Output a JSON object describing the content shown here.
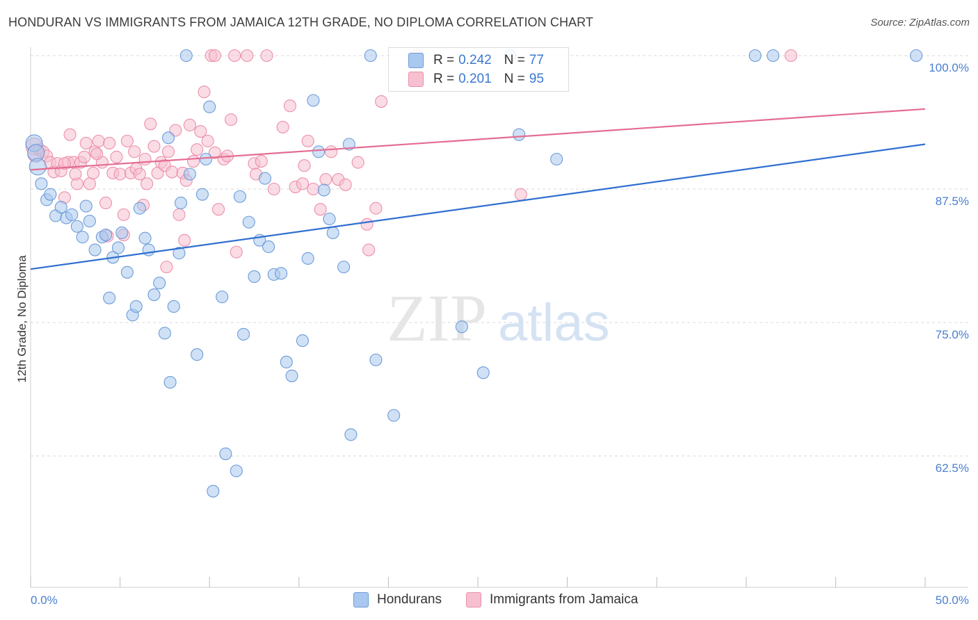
{
  "title": "HONDURAN VS IMMIGRANTS FROM JAMAICA 12TH GRADE, NO DIPLOMA CORRELATION CHART",
  "source": "Source: ZipAtlas.com",
  "watermark": {
    "zip": "ZIP",
    "atlas": "atlas"
  },
  "colors": {
    "blue_fill": "#a9c8ef",
    "blue_stroke": "#6c9bd8",
    "blue_line": "#2f6fd0",
    "pink_fill": "#f6c0d0",
    "pink_stroke": "#ec8fab",
    "pink_line": "#e46c92",
    "axis_text": "#4a7fd0",
    "grid": "#d8d8d8"
  },
  "legend": {
    "rows": [
      {
        "r_label": "R = ",
        "r_value": "0.242",
        "n_label": "N = ",
        "n_value": "77"
      },
      {
        "r_label": "R = ",
        "r_value": "0.201",
        "n_label": "N = ",
        "n_value": "95"
      }
    ]
  },
  "bottom_legend": [
    "Hondurans",
    "Immigrants from Jamaica"
  ],
  "chart_data": {
    "type": "scatter",
    "title": "HONDURAN VS IMMIGRANTS FROM JAMAICA 12TH GRADE, NO DIPLOMA CORRELATION CHART",
    "xlabel": "",
    "ylabel": "12th Grade, No Diploma",
    "xlim": [
      0,
      50
    ],
    "ylim": [
      50,
      100
    ],
    "x_tick_labels": [
      "0.0%",
      "50.0%"
    ],
    "y_ticks": [
      100,
      87.5,
      75,
      62.5
    ],
    "y_tick_labels": [
      "100.0%",
      "87.5%",
      "75.0%",
      "62.5%"
    ],
    "grid": true,
    "legend_position": "top-center",
    "series": [
      {
        "name": "Hondurans",
        "r": 0.242,
        "n": 77,
        "trend": {
          "x": [
            0,
            50
          ],
          "y": [
            80.0,
            91.7
          ]
        },
        "points": [
          [
            0.2,
            91.8
          ],
          [
            0.3,
            90.9
          ],
          [
            0.4,
            89.6
          ],
          [
            0.6,
            88.0
          ],
          [
            0.9,
            86.5
          ],
          [
            1.1,
            87.0
          ],
          [
            1.4,
            85.0
          ],
          [
            1.7,
            85.8
          ],
          [
            2.0,
            84.8
          ],
          [
            2.3,
            85.1
          ],
          [
            2.6,
            84.0
          ],
          [
            2.9,
            83.0
          ],
          [
            3.1,
            85.9
          ],
          [
            3.3,
            84.5
          ],
          [
            3.6,
            81.8
          ],
          [
            4.0,
            83.0
          ],
          [
            4.2,
            83.2
          ],
          [
            4.4,
            77.3
          ],
          [
            4.6,
            81.1
          ],
          [
            4.9,
            82.0
          ],
          [
            5.1,
            83.4
          ],
          [
            5.4,
            79.7
          ],
          [
            5.7,
            75.7
          ],
          [
            5.9,
            76.5
          ],
          [
            6.1,
            85.7
          ],
          [
            6.4,
            82.9
          ],
          [
            6.6,
            81.8
          ],
          [
            6.9,
            77.6
          ],
          [
            7.2,
            78.7
          ],
          [
            7.5,
            74.0
          ],
          [
            7.7,
            92.3
          ],
          [
            7.8,
            69.4
          ],
          [
            8.0,
            76.5
          ],
          [
            8.3,
            81.5
          ],
          [
            8.4,
            86.2
          ],
          [
            8.7,
            100.0
          ],
          [
            8.9,
            88.9
          ],
          [
            9.3,
            72.0
          ],
          [
            9.6,
            87.0
          ],
          [
            9.8,
            90.3
          ],
          [
            10.0,
            95.2
          ],
          [
            10.7,
            77.4
          ],
          [
            10.9,
            62.7
          ],
          [
            11.5,
            61.1
          ],
          [
            10.2,
            59.2
          ],
          [
            11.7,
            86.8
          ],
          [
            11.9,
            73.9
          ],
          [
            12.2,
            84.4
          ],
          [
            12.5,
            79.3
          ],
          [
            12.8,
            82.7
          ],
          [
            13.1,
            88.5
          ],
          [
            13.3,
            82.1
          ],
          [
            13.6,
            79.5
          ],
          [
            14.0,
            79.6
          ],
          [
            14.3,
            71.3
          ],
          [
            14.6,
            70.0
          ],
          [
            15.2,
            73.3
          ],
          [
            15.5,
            81.0
          ],
          [
            15.8,
            95.8
          ],
          [
            16.1,
            91.0
          ],
          [
            16.4,
            87.4
          ],
          [
            16.7,
            84.7
          ],
          [
            16.9,
            83.4
          ],
          [
            17.5,
            80.2
          ],
          [
            17.8,
            91.7
          ],
          [
            17.9,
            64.5
          ],
          [
            19.0,
            100.0
          ],
          [
            19.3,
            71.5
          ],
          [
            20.3,
            66.3
          ],
          [
            24.1,
            74.6
          ],
          [
            25.3,
            70.3
          ],
          [
            26.8,
            100.0
          ],
          [
            27.3,
            92.6
          ],
          [
            29.4,
            90.3
          ],
          [
            40.5,
            100.0
          ],
          [
            41.5,
            100.0
          ],
          [
            49.5,
            100.0
          ]
        ]
      },
      {
        "name": "Immigrants from Jamaica",
        "r": 0.201,
        "n": 95,
        "trend": {
          "x": [
            0,
            50
          ],
          "y": [
            89.3,
            95.0
          ]
        },
        "points": [
          [
            0.2,
            91.5
          ],
          [
            0.3,
            90.8
          ],
          [
            0.5,
            91.2
          ],
          [
            0.7,
            91.0
          ],
          [
            0.9,
            90.6
          ],
          [
            1.1,
            90.0
          ],
          [
            1.3,
            89.1
          ],
          [
            1.5,
            89.9
          ],
          [
            1.7,
            89.2
          ],
          [
            1.9,
            86.7
          ],
          [
            2.1,
            90.0
          ],
          [
            2.2,
            92.6
          ],
          [
            2.4,
            90.0
          ],
          [
            2.6,
            88.0
          ],
          [
            2.8,
            90.0
          ],
          [
            3.0,
            90.5
          ],
          [
            3.1,
            91.8
          ],
          [
            3.3,
            88.0
          ],
          [
            3.5,
            89.0
          ],
          [
            3.6,
            91.0
          ],
          [
            3.8,
            92.0
          ],
          [
            4.0,
            90.0
          ],
          [
            4.2,
            86.2
          ],
          [
            4.4,
            91.8
          ],
          [
            4.6,
            89.0
          ],
          [
            4.8,
            90.5
          ],
          [
            5.0,
            88.9
          ],
          [
            5.2,
            85.1
          ],
          [
            5.4,
            92.0
          ],
          [
            5.6,
            89.0
          ],
          [
            5.8,
            91.0
          ],
          [
            5.9,
            89.4
          ],
          [
            6.1,
            88.9
          ],
          [
            6.3,
            86.0
          ],
          [
            6.5,
            88.0
          ],
          [
            6.7,
            93.6
          ],
          [
            6.9,
            91.5
          ],
          [
            7.1,
            89.0
          ],
          [
            7.3,
            90.0
          ],
          [
            7.5,
            89.7
          ],
          [
            7.7,
            91.0
          ],
          [
            7.9,
            89.1
          ],
          [
            8.1,
            93.0
          ],
          [
            8.3,
            85.1
          ],
          [
            8.5,
            89.0
          ],
          [
            8.7,
            88.3
          ],
          [
            8.9,
            93.5
          ],
          [
            9.1,
            90.1
          ],
          [
            9.3,
            91.2
          ],
          [
            9.5,
            92.9
          ],
          [
            9.7,
            96.6
          ],
          [
            9.9,
            92.0
          ],
          [
            10.1,
            100.0
          ],
          [
            10.3,
            90.9
          ],
          [
            10.5,
            85.6
          ],
          [
            10.8,
            90.3
          ],
          [
            11.0,
            90.6
          ],
          [
            11.2,
            94.0
          ],
          [
            11.5,
            81.6
          ],
          [
            12.1,
            100.0
          ],
          [
            12.5,
            89.9
          ],
          [
            12.9,
            90.1
          ],
          [
            13.2,
            100.0
          ],
          [
            13.6,
            87.5
          ],
          [
            14.1,
            93.3
          ],
          [
            14.5,
            95.3
          ],
          [
            14.8,
            87.7
          ],
          [
            15.2,
            88.0
          ],
          [
            15.5,
            92.0
          ],
          [
            15.8,
            87.5
          ],
          [
            16.2,
            85.6
          ],
          [
            16.5,
            88.4
          ],
          [
            16.8,
            91.0
          ],
          [
            17.2,
            88.4
          ],
          [
            17.6,
            87.9
          ],
          [
            18.3,
            90.0
          ],
          [
            18.9,
            81.8
          ],
          [
            19.3,
            85.7
          ],
          [
            19.6,
            95.7
          ],
          [
            7.6,
            80.2
          ],
          [
            8.6,
            82.7
          ],
          [
            10.3,
            100.0
          ],
          [
            11.4,
            100.0
          ],
          [
            21.6,
            100.0
          ],
          [
            27.4,
            87.0
          ],
          [
            42.5,
            100.0
          ],
          [
            4.3,
            83.1
          ],
          [
            5.2,
            83.2
          ],
          [
            6.4,
            90.3
          ],
          [
            3.7,
            90.8
          ],
          [
            2.5,
            88.9
          ],
          [
            1.9,
            89.9
          ],
          [
            15.3,
            89.7
          ],
          [
            12.6,
            88.9
          ],
          [
            18.8,
            84.2
          ]
        ]
      }
    ]
  }
}
